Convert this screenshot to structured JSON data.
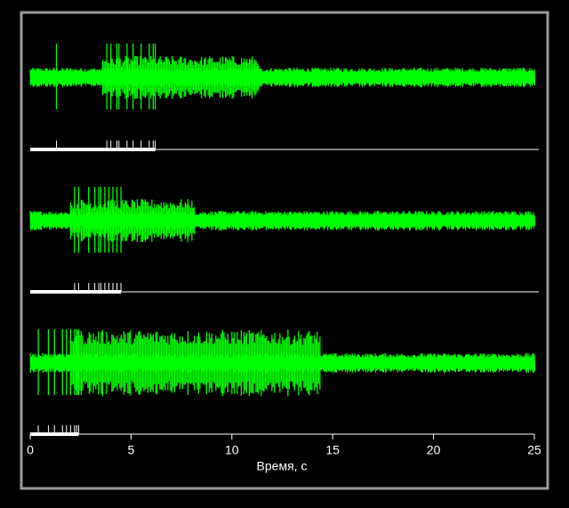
{
  "chart_data": {
    "type": "spike-raster",
    "xlabel": "Время, с",
    "xlim": [
      0,
      25
    ],
    "xticks": [
      0,
      5,
      10,
      15,
      20,
      25
    ],
    "color": "#00ff00",
    "series": [
      {
        "spikes": [
          1.3,
          3.8,
          4.0,
          4.3,
          4.4,
          4.8,
          5.1,
          5.5,
          5.9,
          6.1,
          6.2
        ],
        "burst": [
          3.6,
          11.4
        ]
      },
      {
        "spikes": [
          2.2,
          2.4,
          2.9,
          3.2,
          3.4,
          3.5,
          3.7,
          3.9,
          4.1,
          4.3,
          4.5
        ],
        "burst": [
          2.0,
          8.2
        ]
      },
      {
        "spikes": [
          0.4,
          0.9,
          1.2,
          1.6,
          1.8,
          2.0,
          2.2,
          2.3,
          2.4
        ],
        "burst": [
          2.0,
          14.4
        ]
      }
    ]
  }
}
